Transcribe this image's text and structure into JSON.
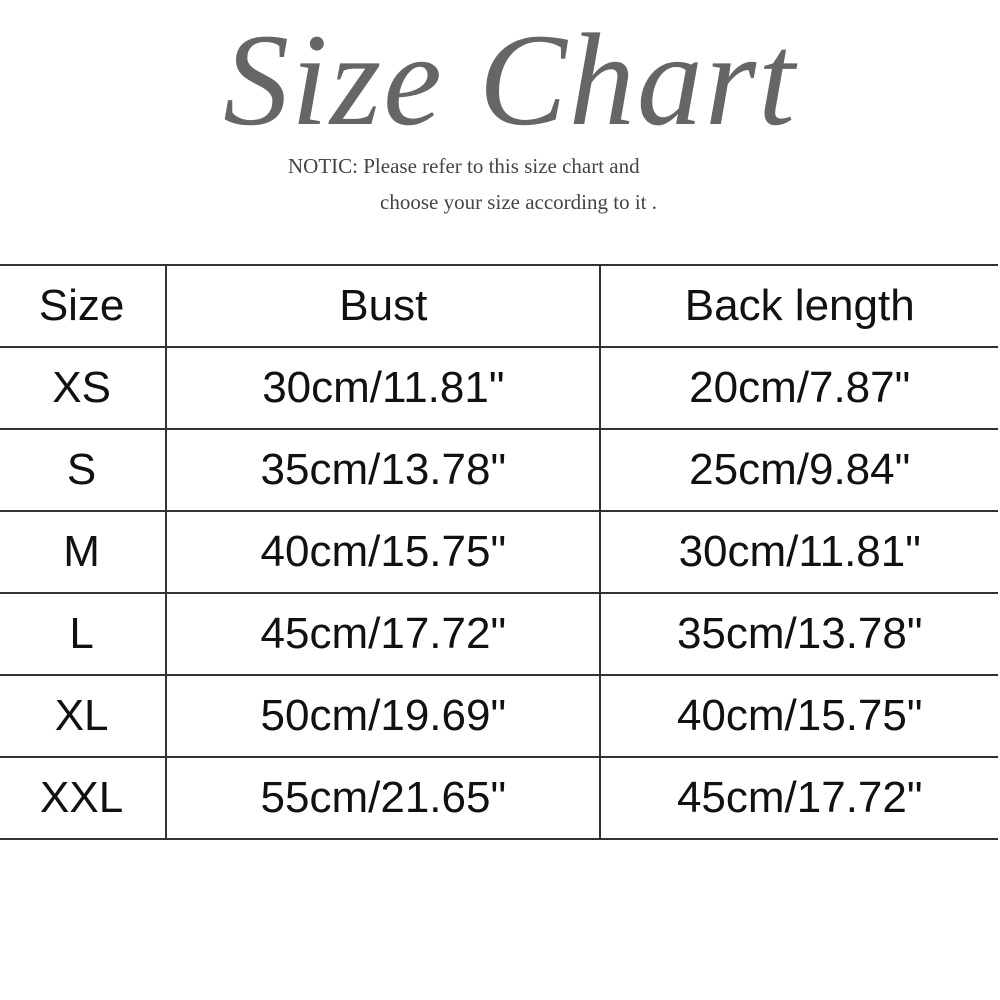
{
  "title": "Size Chart",
  "notice": {
    "line1": "NOTIC: Please refer to this size chart and",
    "line2": "choose your size according to it ."
  },
  "chart_data": {
    "type": "table",
    "columns": [
      "Size",
      "Bust",
      "Back length"
    ],
    "rows": [
      [
        "XS",
        "30cm/11.81\"",
        "20cm/7.87\""
      ],
      [
        "S",
        "35cm/13.78\"",
        "25cm/9.84\""
      ],
      [
        "M",
        "40cm/15.75\"",
        "30cm/11.81\""
      ],
      [
        "L",
        "45cm/17.72\"",
        "35cm/13.78\""
      ],
      [
        "XL",
        "50cm/19.69\"",
        "40cm/15.75\""
      ],
      [
        "XXL",
        "55cm/21.65\"",
        "45cm/17.72\""
      ]
    ]
  }
}
